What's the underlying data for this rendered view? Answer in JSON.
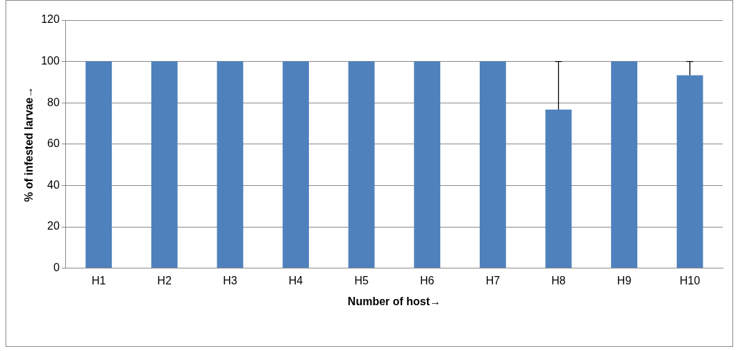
{
  "chart_data": {
    "type": "bar",
    "xlabel": "Number of host→",
    "ylabel": "% of infested larvae→",
    "categories": [
      "H1",
      "H2",
      "H3",
      "H4",
      "H5",
      "H6",
      "H7",
      "H8",
      "H9",
      "H10"
    ],
    "values": [
      100,
      100,
      100,
      100,
      100,
      100,
      100,
      76.7,
      100,
      93.3
    ],
    "errors": [
      null,
      null,
      null,
      null,
      null,
      null,
      null,
      [
        76.7,
        100
      ],
      null,
      [
        93.3,
        100
      ]
    ],
    "color": "#4f81bd",
    "ylim": [
      0,
      120
    ],
    "yticks": [
      0,
      20,
      40,
      60,
      80,
      100,
      120
    ],
    "grid": "y",
    "legend": false
  }
}
